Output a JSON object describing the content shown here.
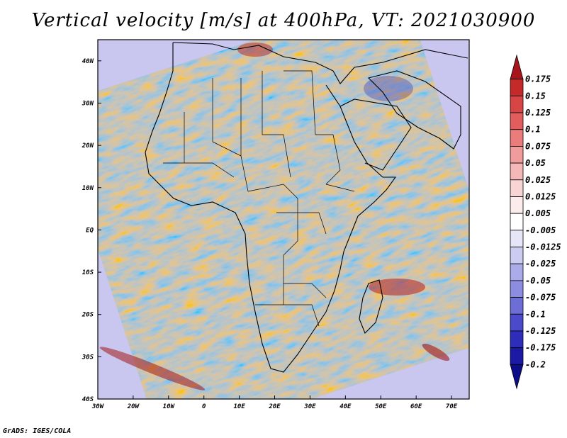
{
  "title": "Vertical velocity [m/s] at 400hPa, VT: 2021030900",
  "credit": "GrADS: IGES/COLA",
  "map": {
    "lon_range": [
      -30,
      75
    ],
    "lat_range": [
      -40,
      45
    ],
    "lon_ticks": [
      "30W",
      "20W",
      "10W",
      "0",
      "10E",
      "20E",
      "30E",
      "40E",
      "50E",
      "60E",
      "70E"
    ],
    "lat_ticks": [
      "40N",
      "30N",
      "20N",
      "10N",
      "EQ",
      "10S",
      "20S",
      "30S",
      "40S"
    ]
  },
  "legend": {
    "levels": [
      "0.175",
      "0.15",
      "0.125",
      "0.1",
      "0.075",
      "0.05",
      "0.025",
      "0.0125",
      "0.005",
      "-0.005",
      "-0.0125",
      "-0.025",
      "-0.05",
      "-0.075",
      "-0.1",
      "-0.125",
      "-0.175",
      "-0.2"
    ],
    "colors": [
      "#a8141c",
      "#c42a2a",
      "#d84545",
      "#e25e5e",
      "#ea7c7c",
      "#f09c9c",
      "#f5b8b8",
      "#f9d4d4",
      "#fdecec",
      "#ffffff",
      "#e6e6f8",
      "#ccccf2",
      "#ababea",
      "#8c8ce0",
      "#6d6dd6",
      "#4a4acb",
      "#2d2dba",
      "#1a1aa5",
      "#0d0d8a"
    ]
  }
}
